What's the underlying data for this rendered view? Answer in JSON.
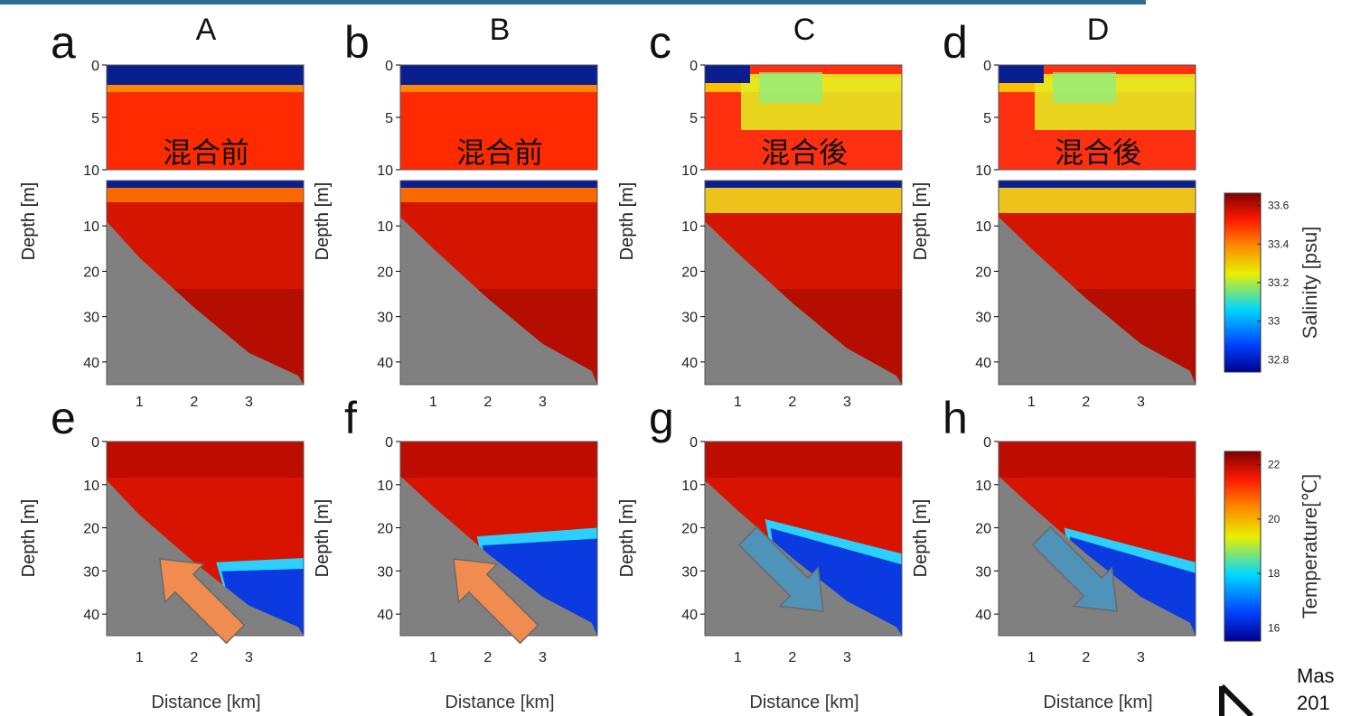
{
  "header": {},
  "citation": {
    "line1": "Mas",
    "line2": "201"
  },
  "depth_label": "Depth [m]",
  "distance_label": "Distance [km]",
  "salinity_colorbar": {
    "label": "Salinity [psu]",
    "ticks": [
      "33.6",
      "33.4",
      "33.2",
      "33",
      "32.8"
    ],
    "values": [
      33.6,
      33.4,
      33.2,
      33.0,
      32.8
    ]
  },
  "temperature_colorbar": {
    "label": "Temperature[℃]",
    "ticks": [
      "22",
      "20",
      "18",
      "16"
    ],
    "values": [
      22,
      20,
      18,
      16
    ]
  },
  "colors": {
    "bottom": "#808080",
    "topbar": "#2e6f8e",
    "arrow_orange": "#f08c4f",
    "arrow_blue": "#4f93b8"
  },
  "chart_data": [
    {
      "type": "heatmap",
      "panel": "a",
      "column_label": "A",
      "variable": "salinity",
      "inset_text": "混合前",
      "ylim_upper": [
        0,
        10
      ],
      "ylim_lower": [
        0,
        45
      ],
      "xlim": [
        0.4,
        4.0
      ],
      "x_ticks": [
        1,
        2,
        3
      ],
      "y_ticks_upper": [
        0,
        5,
        10
      ],
      "y_ticks_lower": [
        10,
        20,
        30,
        40
      ],
      "bottom_depth_km_m": [
        [
          0.4,
          9
        ],
        [
          1.0,
          17
        ],
        [
          2.0,
          28
        ],
        [
          3.0,
          38
        ],
        [
          3.9,
          43
        ]
      ]
    },
    {
      "type": "heatmap",
      "panel": "b",
      "column_label": "B",
      "variable": "salinity",
      "inset_text": "混合前",
      "ylim_upper": [
        0,
        10
      ],
      "ylim_lower": [
        0,
        45
      ],
      "xlim": [
        0.4,
        4.0
      ],
      "x_ticks": [
        1,
        2,
        3
      ],
      "y_ticks_upper": [
        0,
        5,
        10
      ],
      "y_ticks_lower": [
        10,
        20,
        30,
        40
      ],
      "bottom_depth_km_m": [
        [
          0.4,
          8
        ],
        [
          1.0,
          15
        ],
        [
          2.0,
          26
        ],
        [
          3.0,
          36
        ],
        [
          3.9,
          42
        ]
      ]
    },
    {
      "type": "heatmap",
      "panel": "c",
      "column_label": "C",
      "variable": "salinity",
      "inset_text": "混合後",
      "ylim_upper": [
        0,
        10
      ],
      "ylim_lower": [
        0,
        45
      ],
      "xlim": [
        0.4,
        4.0
      ],
      "x_ticks": [
        1,
        2,
        3
      ],
      "y_ticks_upper": [
        0,
        5,
        10
      ],
      "y_ticks_lower": [
        10,
        20,
        30,
        40
      ],
      "bottom_depth_km_m": [
        [
          0.4,
          9
        ],
        [
          1.0,
          16
        ],
        [
          2.0,
          27
        ],
        [
          3.0,
          37
        ],
        [
          3.9,
          43
        ]
      ]
    },
    {
      "type": "heatmap",
      "panel": "d",
      "column_label": "D",
      "variable": "salinity",
      "inset_text": "混合後",
      "ylim_upper": [
        0,
        10
      ],
      "ylim_lower": [
        0,
        45
      ],
      "xlim": [
        0.4,
        4.0
      ],
      "x_ticks": [
        1,
        2,
        3
      ],
      "y_ticks_upper": [
        0,
        5,
        10
      ],
      "y_ticks_lower": [
        10,
        20,
        30,
        40
      ],
      "bottom_depth_km_m": [
        [
          0.4,
          8
        ],
        [
          1.0,
          15
        ],
        [
          2.0,
          26
        ],
        [
          3.0,
          36
        ],
        [
          3.9,
          42
        ]
      ]
    },
    {
      "type": "heatmap",
      "panel": "e",
      "variable": "temperature",
      "arrow": "up",
      "ylim": [
        0,
        45
      ],
      "xlim": [
        0.4,
        4.0
      ],
      "x_ticks": [
        1,
        2,
        3
      ],
      "y_ticks": [
        0,
        10,
        20,
        30,
        40
      ],
      "bottom_depth_km_m": [
        [
          0.4,
          9
        ],
        [
          1.0,
          17
        ],
        [
          2.0,
          28
        ],
        [
          3.0,
          38
        ],
        [
          3.9,
          43
        ]
      ]
    },
    {
      "type": "heatmap",
      "panel": "f",
      "variable": "temperature",
      "arrow": "up",
      "ylim": [
        0,
        45
      ],
      "xlim": [
        0.4,
        4.0
      ],
      "x_ticks": [
        1,
        2,
        3
      ],
      "y_ticks": [
        0,
        10,
        20,
        30,
        40
      ],
      "bottom_depth_km_m": [
        [
          0.4,
          8
        ],
        [
          1.0,
          15
        ],
        [
          2.0,
          26
        ],
        [
          3.0,
          36
        ],
        [
          3.9,
          42
        ]
      ]
    },
    {
      "type": "heatmap",
      "panel": "g",
      "variable": "temperature",
      "arrow": "down",
      "ylim": [
        0,
        45
      ],
      "xlim": [
        0.4,
        4.0
      ],
      "x_ticks": [
        1,
        2,
        3
      ],
      "y_ticks": [
        0,
        10,
        20,
        30,
        40
      ],
      "bottom_depth_km_m": [
        [
          0.4,
          9
        ],
        [
          1.0,
          16
        ],
        [
          2.0,
          27
        ],
        [
          3.0,
          37
        ],
        [
          3.9,
          43
        ]
      ]
    },
    {
      "type": "heatmap",
      "panel": "h",
      "variable": "temperature",
      "arrow": "down",
      "ylim": [
        0,
        45
      ],
      "xlim": [
        0.4,
        4.0
      ],
      "x_ticks": [
        1,
        2,
        3
      ],
      "y_ticks": [
        0,
        10,
        20,
        30,
        40
      ],
      "bottom_depth_km_m": [
        [
          0.4,
          8
        ],
        [
          1.0,
          15
        ],
        [
          2.0,
          26
        ],
        [
          3.0,
          36
        ],
        [
          3.9,
          42
        ]
      ]
    }
  ]
}
